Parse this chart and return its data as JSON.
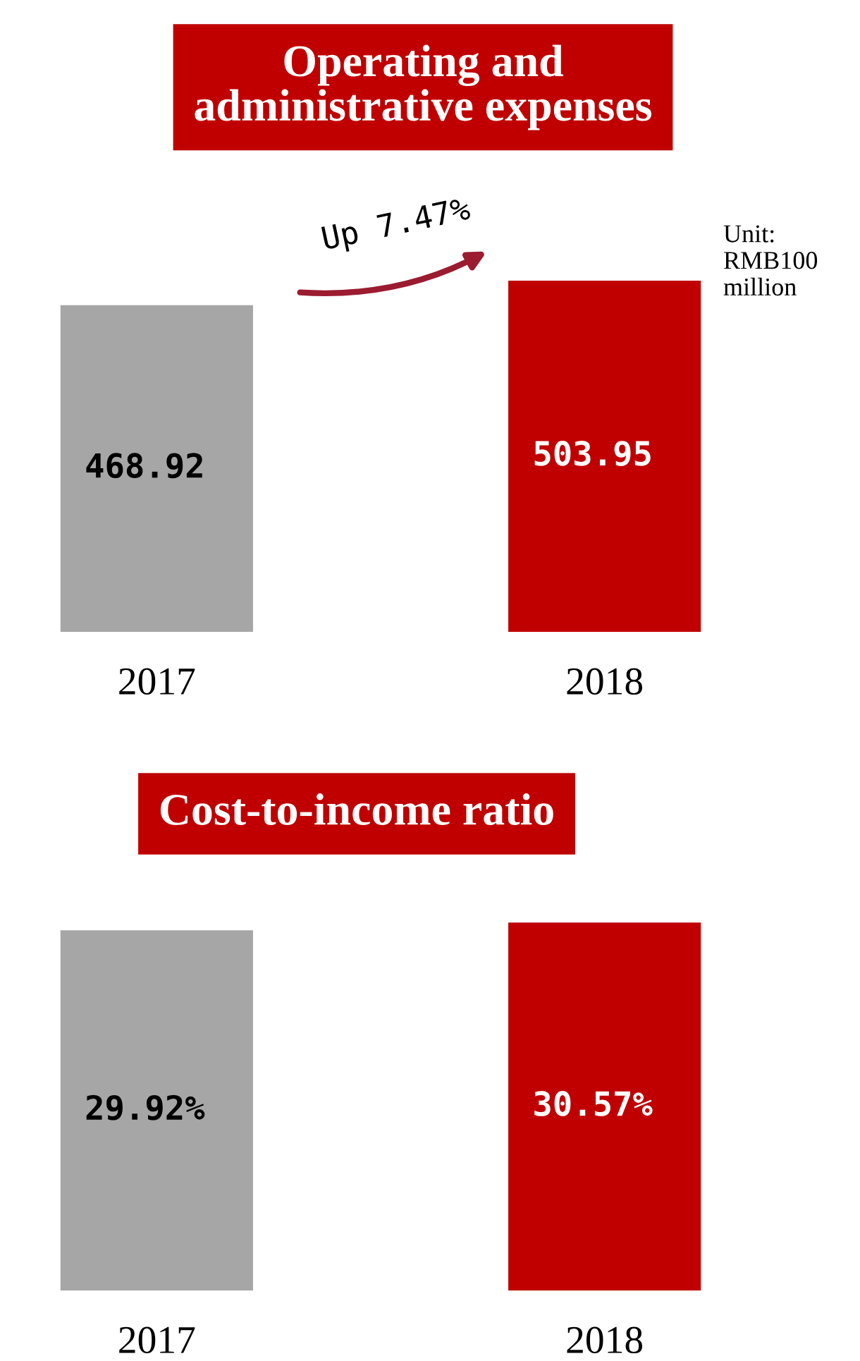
{
  "chart_data": [
    {
      "type": "bar",
      "title": "Operating and administrative expenses",
      "categories": [
        "2017",
        "2018"
      ],
      "values": [
        468.92,
        503.95
      ],
      "colors": [
        "#a6a6a6",
        "#c00000"
      ],
      "value_labels": [
        "468.92",
        "503.95"
      ],
      "annotations": [
        "Up 7.47%",
        "Unit: RMB100 million"
      ]
    },
    {
      "type": "bar",
      "title": "Cost-to-income ratio",
      "categories": [
        "2017",
        "2018"
      ],
      "values": [
        29.92,
        30.57
      ],
      "colors": [
        "#a6a6a6",
        "#c00000"
      ],
      "value_labels": [
        "29.92%",
        "30.57%"
      ]
    }
  ]
}
